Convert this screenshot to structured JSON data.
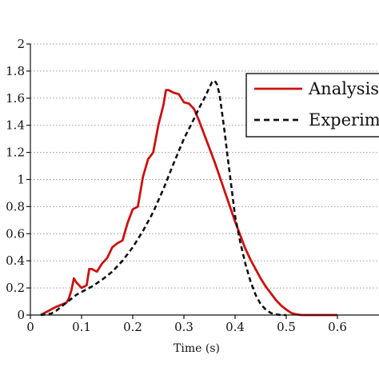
{
  "chart_data": {
    "type": "line",
    "title": "",
    "xlabel": "Time (s)",
    "ylabel": "",
    "xlim": [
      0,
      0.65
    ],
    "ylim": [
      0,
      2
    ],
    "x_ticks": [
      "0",
      "0.1",
      "0.2",
      "0.3",
      "0.4",
      "0.5",
      "0.6"
    ],
    "y_ticks": [
      "0",
      "0.2",
      "0.4",
      "0.6",
      "0.8",
      "1",
      "1.2",
      "1.4",
      "1.6",
      "1.8",
      "2"
    ],
    "grid": "horizontal dotted",
    "legend_placement": "top-right",
    "series": [
      {
        "name": "Analysis",
        "color": "#cc1111",
        "dash": "solid",
        "x": [
          0.02,
          0.03,
          0.05,
          0.07,
          0.075,
          0.08,
          0.085,
          0.09,
          0.1,
          0.11,
          0.115,
          0.12,
          0.13,
          0.14,
          0.15,
          0.16,
          0.17,
          0.18,
          0.19,
          0.2,
          0.21,
          0.22,
          0.23,
          0.24,
          0.25,
          0.26,
          0.265,
          0.27,
          0.28,
          0.29,
          0.3,
          0.31,
          0.32,
          0.33,
          0.34,
          0.35,
          0.36,
          0.37,
          0.38,
          0.39,
          0.4,
          0.41,
          0.42,
          0.43,
          0.44,
          0.45,
          0.46,
          0.47,
          0.48,
          0.49,
          0.5,
          0.51,
          0.52,
          0.53,
          0.54,
          0.55,
          0.6
        ],
        "y": [
          0,
          0.02,
          0.06,
          0.09,
          0.12,
          0.18,
          0.27,
          0.24,
          0.2,
          0.22,
          0.34,
          0.34,
          0.32,
          0.38,
          0.42,
          0.5,
          0.53,
          0.55,
          0.68,
          0.78,
          0.8,
          1.02,
          1.15,
          1.2,
          1.4,
          1.55,
          1.66,
          1.66,
          1.64,
          1.63,
          1.57,
          1.56,
          1.52,
          1.43,
          1.33,
          1.23,
          1.13,
          1.02,
          0.91,
          0.8,
          0.69,
          0.59,
          0.49,
          0.41,
          0.34,
          0.27,
          0.21,
          0.16,
          0.11,
          0.07,
          0.04,
          0.015,
          0.005,
          0,
          0,
          0,
          0
        ]
      },
      {
        "name": "Experim",
        "color": "#111111",
        "dash": "dashed",
        "x": [
          0.02,
          0.04,
          0.05,
          0.06,
          0.07,
          0.08,
          0.09,
          0.1,
          0.12,
          0.14,
          0.16,
          0.18,
          0.2,
          0.22,
          0.24,
          0.26,
          0.28,
          0.3,
          0.32,
          0.33,
          0.34,
          0.35,
          0.355,
          0.36,
          0.365,
          0.37,
          0.375,
          0.38,
          0.385,
          0.39,
          0.395,
          0.4,
          0.41,
          0.42,
          0.43,
          0.44,
          0.45,
          0.46,
          0.47,
          0.48,
          0.49,
          0.5
        ],
        "y": [
          0,
          0.01,
          0.03,
          0.06,
          0.09,
          0.12,
          0.15,
          0.17,
          0.21,
          0.26,
          0.32,
          0.4,
          0.5,
          0.62,
          0.76,
          0.93,
          1.12,
          1.3,
          1.45,
          1.53,
          1.6,
          1.68,
          1.72,
          1.73,
          1.7,
          1.62,
          1.48,
          1.34,
          1.18,
          1.03,
          0.88,
          0.73,
          0.54,
          0.38,
          0.25,
          0.15,
          0.08,
          0.04,
          0.015,
          0.005,
          0,
          0
        ]
      }
    ]
  }
}
